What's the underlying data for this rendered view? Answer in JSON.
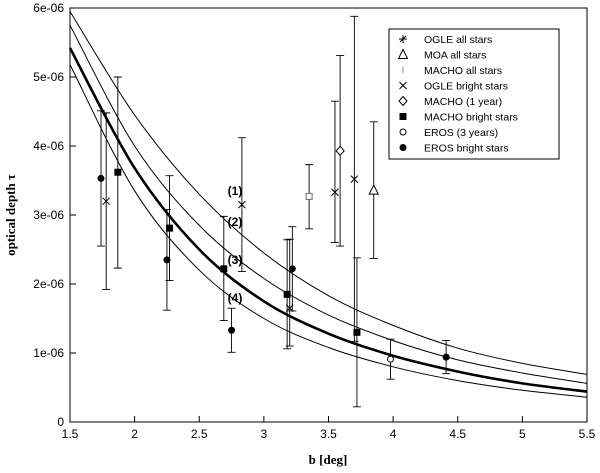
{
  "chart_data": {
    "type": "scatter",
    "xlabel": "b [deg]",
    "ylabel": "optical depth τ",
    "xlim": [
      1.5,
      5.5
    ],
    "ylim": [
      0,
      6e-06
    ],
    "x_ticks": [
      1.5,
      2,
      2.5,
      3,
      3.5,
      4,
      4.5,
      5,
      5.5
    ],
    "x_tick_labels": [
      "1.5",
      "2",
      "2.5",
      "3",
      "3.5",
      "4",
      "4.5",
      "5",
      "5.5"
    ],
    "y_ticks": [
      0,
      1e-06,
      2e-06,
      3e-06,
      4e-06,
      5e-06,
      6e-06
    ],
    "y_tick_labels": [
      "0",
      "1e-06",
      "2e-06",
      "3e-06",
      "4e-06",
      "5e-06",
      "6e-06"
    ],
    "grid": false,
    "legend_position": "top-right",
    "curves": [
      {
        "name": "(1)",
        "thick": false,
        "points": [
          [
            1.5,
            5.95e-06
          ],
          [
            2.0,
            4.45e-06
          ],
          [
            2.5,
            3.3e-06
          ],
          [
            3.0,
            2.45e-06
          ],
          [
            3.5,
            1.83e-06
          ],
          [
            4.0,
            1.4e-06
          ],
          [
            4.5,
            1.07e-06
          ],
          [
            5.0,
            8.5e-07
          ],
          [
            5.5,
            6.9e-07
          ]
        ]
      },
      {
        "name": "(2)",
        "thick": false,
        "points": [
          [
            1.5,
            5.75e-06
          ],
          [
            2.0,
            4e-06
          ],
          [
            2.5,
            2.85e-06
          ],
          [
            3.0,
            2.08e-06
          ],
          [
            3.5,
            1.55e-06
          ],
          [
            4.0,
            1.18e-06
          ],
          [
            4.5,
            9e-07
          ],
          [
            5.0,
            7.1e-07
          ],
          [
            5.5,
            5.6e-07
          ]
        ]
      },
      {
        "name": "(3)",
        "thick": true,
        "points": [
          [
            1.5,
            5.42e-06
          ],
          [
            2.0,
            3.68e-06
          ],
          [
            2.5,
            2.5e-06
          ],
          [
            3.0,
            1.75e-06
          ],
          [
            3.5,
            1.28e-06
          ],
          [
            4.0,
            9.6e-07
          ],
          [
            4.5,
            7.3e-07
          ],
          [
            5.0,
            5.6e-07
          ],
          [
            5.5,
            4.4e-07
          ]
        ]
      },
      {
        "name": "(4)",
        "thick": false,
        "points": [
          [
            1.5,
            5.18e-06
          ],
          [
            2.0,
            3.35e-06
          ],
          [
            2.5,
            2.2e-06
          ],
          [
            3.0,
            1.5e-06
          ],
          [
            3.5,
            1.08e-06
          ],
          [
            4.0,
            8e-07
          ],
          [
            4.5,
            6e-07
          ],
          [
            5.0,
            4.6e-07
          ],
          [
            5.5,
            3.6e-07
          ]
        ]
      }
    ],
    "curve_labels": [
      {
        "text": "(1)",
        "x": 2.72,
        "y": 3.35e-06
      },
      {
        "text": "(2)",
        "x": 2.72,
        "y": 2.9e-06
      },
      {
        "text": "(3)",
        "x": 2.72,
        "y": 2.35e-06
      },
      {
        "text": "(4)",
        "x": 2.72,
        "y": 1.8e-06
      }
    ],
    "series": [
      {
        "name": "OGLE all stars",
        "marker": "asterisk",
        "points": []
      },
      {
        "name": "MOA all stars",
        "marker": "triangle-open",
        "points": [
          {
            "x": 3.85,
            "y": 3.36e-06,
            "lo": 2.37e-06,
            "hi": 4.35e-06
          }
        ]
      },
      {
        "name": "MACHO all stars",
        "marker": "square-small",
        "points": [
          {
            "x": 3.35,
            "y": 3.27e-06,
            "lo": 2.8e-06,
            "hi": 3.73e-06
          }
        ]
      },
      {
        "name": "OGLE bright stars",
        "marker": "cross",
        "points": [
          {
            "x": 1.78,
            "y": 3.2e-06,
            "lo": 1.92e-06,
            "hi": 4.48e-06
          },
          {
            "x": 2.83,
            "y": 3.15e-06,
            "lo": 2.18e-06,
            "hi": 4.12e-06
          },
          {
            "x": 3.2,
            "y": 1.65e-06,
            "lo": 1.1e-06,
            "hi": 2.65e-06
          },
          {
            "x": 3.55,
            "y": 3.33e-06,
            "lo": 2.6e-06,
            "hi": 4.65e-06
          },
          {
            "x": 3.7,
            "y": 3.52e-06,
            "lo": 1.17e-06,
            "hi": 5.88e-06
          }
        ]
      },
      {
        "name": "MACHO (1 year)",
        "marker": "diamond-open",
        "points": [
          {
            "x": 3.59,
            "y": 3.93e-06,
            "lo": 2.55e-06,
            "hi": 5.31e-06
          }
        ]
      },
      {
        "name": "MACHO bright stars",
        "marker": "square-filled",
        "points": [
          {
            "x": 1.87,
            "y": 3.62e-06,
            "lo": 2.23e-06,
            "hi": 5e-06
          },
          {
            "x": 2.27,
            "y": 2.81e-06,
            "lo": 2.05e-06,
            "hi": 3.57e-06
          },
          {
            "x": 2.69,
            "y": 2.22e-06,
            "lo": 1.47e-06,
            "hi": 2.98e-06
          },
          {
            "x": 3.18,
            "y": 1.85e-06,
            "lo": 1.06e-06,
            "hi": 2.64e-06
          },
          {
            "x": 3.72,
            "y": 1.3e-06,
            "lo": 2.2e-07,
            "hi": 2.38e-06
          }
        ]
      },
      {
        "name": "EROS (3 years)",
        "marker": "circle-small-open",
        "points": [
          {
            "x": 3.98,
            "y": 9.1e-07,
            "lo": 6.2e-07,
            "hi": 1.2e-06
          }
        ]
      },
      {
        "name": "EROS bright stars",
        "marker": "circle-filled",
        "points": [
          {
            "x": 1.74,
            "y": 3.53e-06,
            "lo": 2.55e-06,
            "hi": 4.51e-06
          },
          {
            "x": 2.25,
            "y": 2.35e-06,
            "lo": 1.62e-06,
            "hi": 3.08e-06
          },
          {
            "x": 2.75,
            "y": 1.33e-06,
            "lo": 1.01e-06,
            "hi": 1.65e-06
          },
          {
            "x": 3.22,
            "y": 2.22e-06,
            "lo": 1.61e-06,
            "hi": 2.83e-06
          },
          {
            "x": 4.41,
            "y": 9.4e-07,
            "lo": 7e-07,
            "hi": 1.18e-06
          }
        ]
      }
    ],
    "legend": [
      {
        "label": "OGLE all stars",
        "marker": "asterisk"
      },
      {
        "label": "MOA all stars",
        "marker": "triangle-open"
      },
      {
        "label": "MACHO all stars",
        "marker": "tick"
      },
      {
        "label": "OGLE bright stars",
        "marker": "cross"
      },
      {
        "label": "MACHO (1 year)",
        "marker": "diamond-open"
      },
      {
        "label": "MACHO bright stars",
        "marker": "square-filled"
      },
      {
        "label": "EROS (3 years)",
        "marker": "circle-small-open"
      },
      {
        "label": "EROS bright stars",
        "marker": "circle-filled"
      }
    ]
  }
}
